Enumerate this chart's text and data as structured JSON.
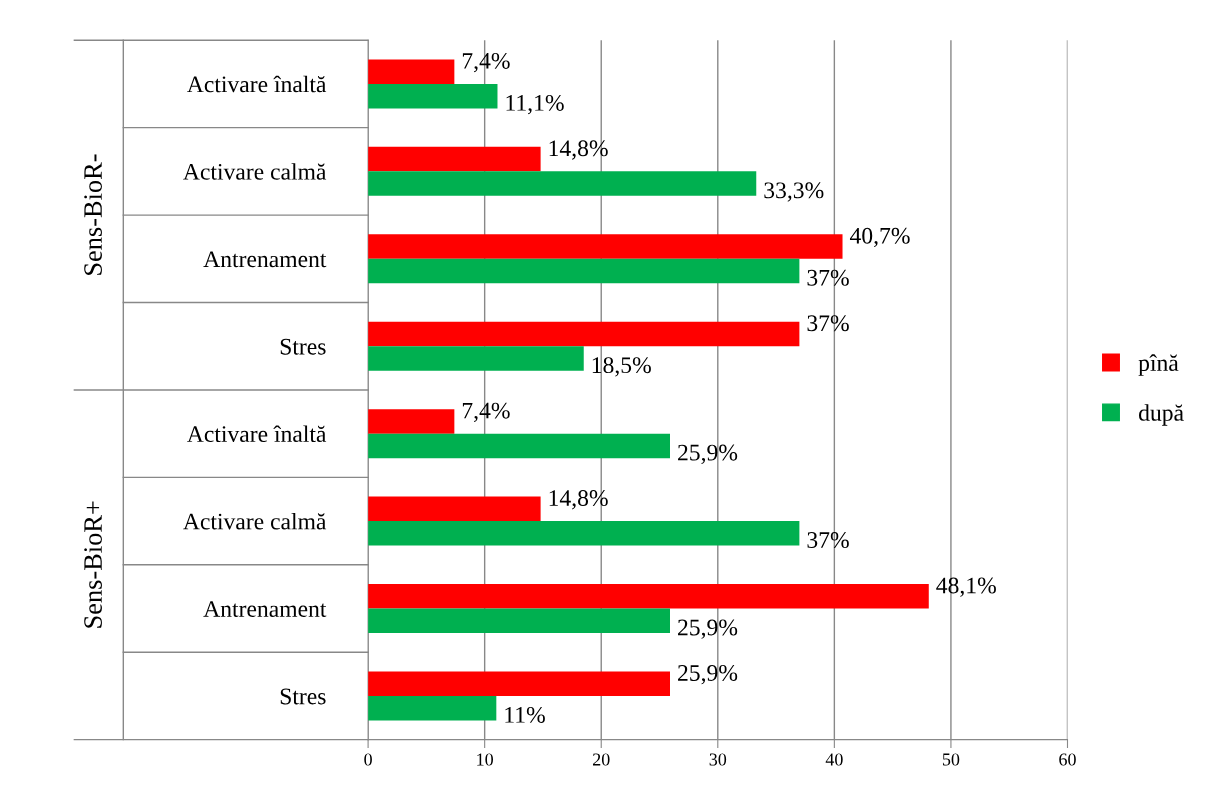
{
  "chart_data": {
    "type": "bar",
    "orientation": "horizontal",
    "categories": [
      "Activare înaltă",
      "Activare calmă",
      "Antrenament",
      "Stres",
      "Activare înaltă",
      "Activare calmă",
      "Antrenament",
      "Stres"
    ],
    "series": [
      {
        "name": "pînă",
        "color": "#ff0000",
        "values": [
          7.4,
          14.8,
          40.7,
          37,
          7.4,
          14.8,
          48.1,
          25.9
        ],
        "value_labels": [
          "7,4%",
          "14,8%",
          "40,7%",
          "37%",
          "7,4%",
          "14,8%",
          "48,1%",
          "25,9%"
        ]
      },
      {
        "name": "după",
        "color": "#00b050",
        "values": [
          11.1,
          33.3,
          37,
          18.5,
          25.9,
          37,
          25.9,
          11
        ],
        "value_labels": [
          "11,1%",
          "33,3%",
          "37%",
          "18,5%",
          "25,9%",
          "37%",
          "25,9%",
          "11%"
        ]
      }
    ],
    "annotations": [
      "Sens-BioR-",
      "Sens-BioR+"
    ],
    "xlim": [
      0,
      60
    ],
    "xticks": [
      0,
      10,
      20,
      30,
      40,
      50,
      60
    ],
    "grid": "x",
    "legend": "right"
  }
}
